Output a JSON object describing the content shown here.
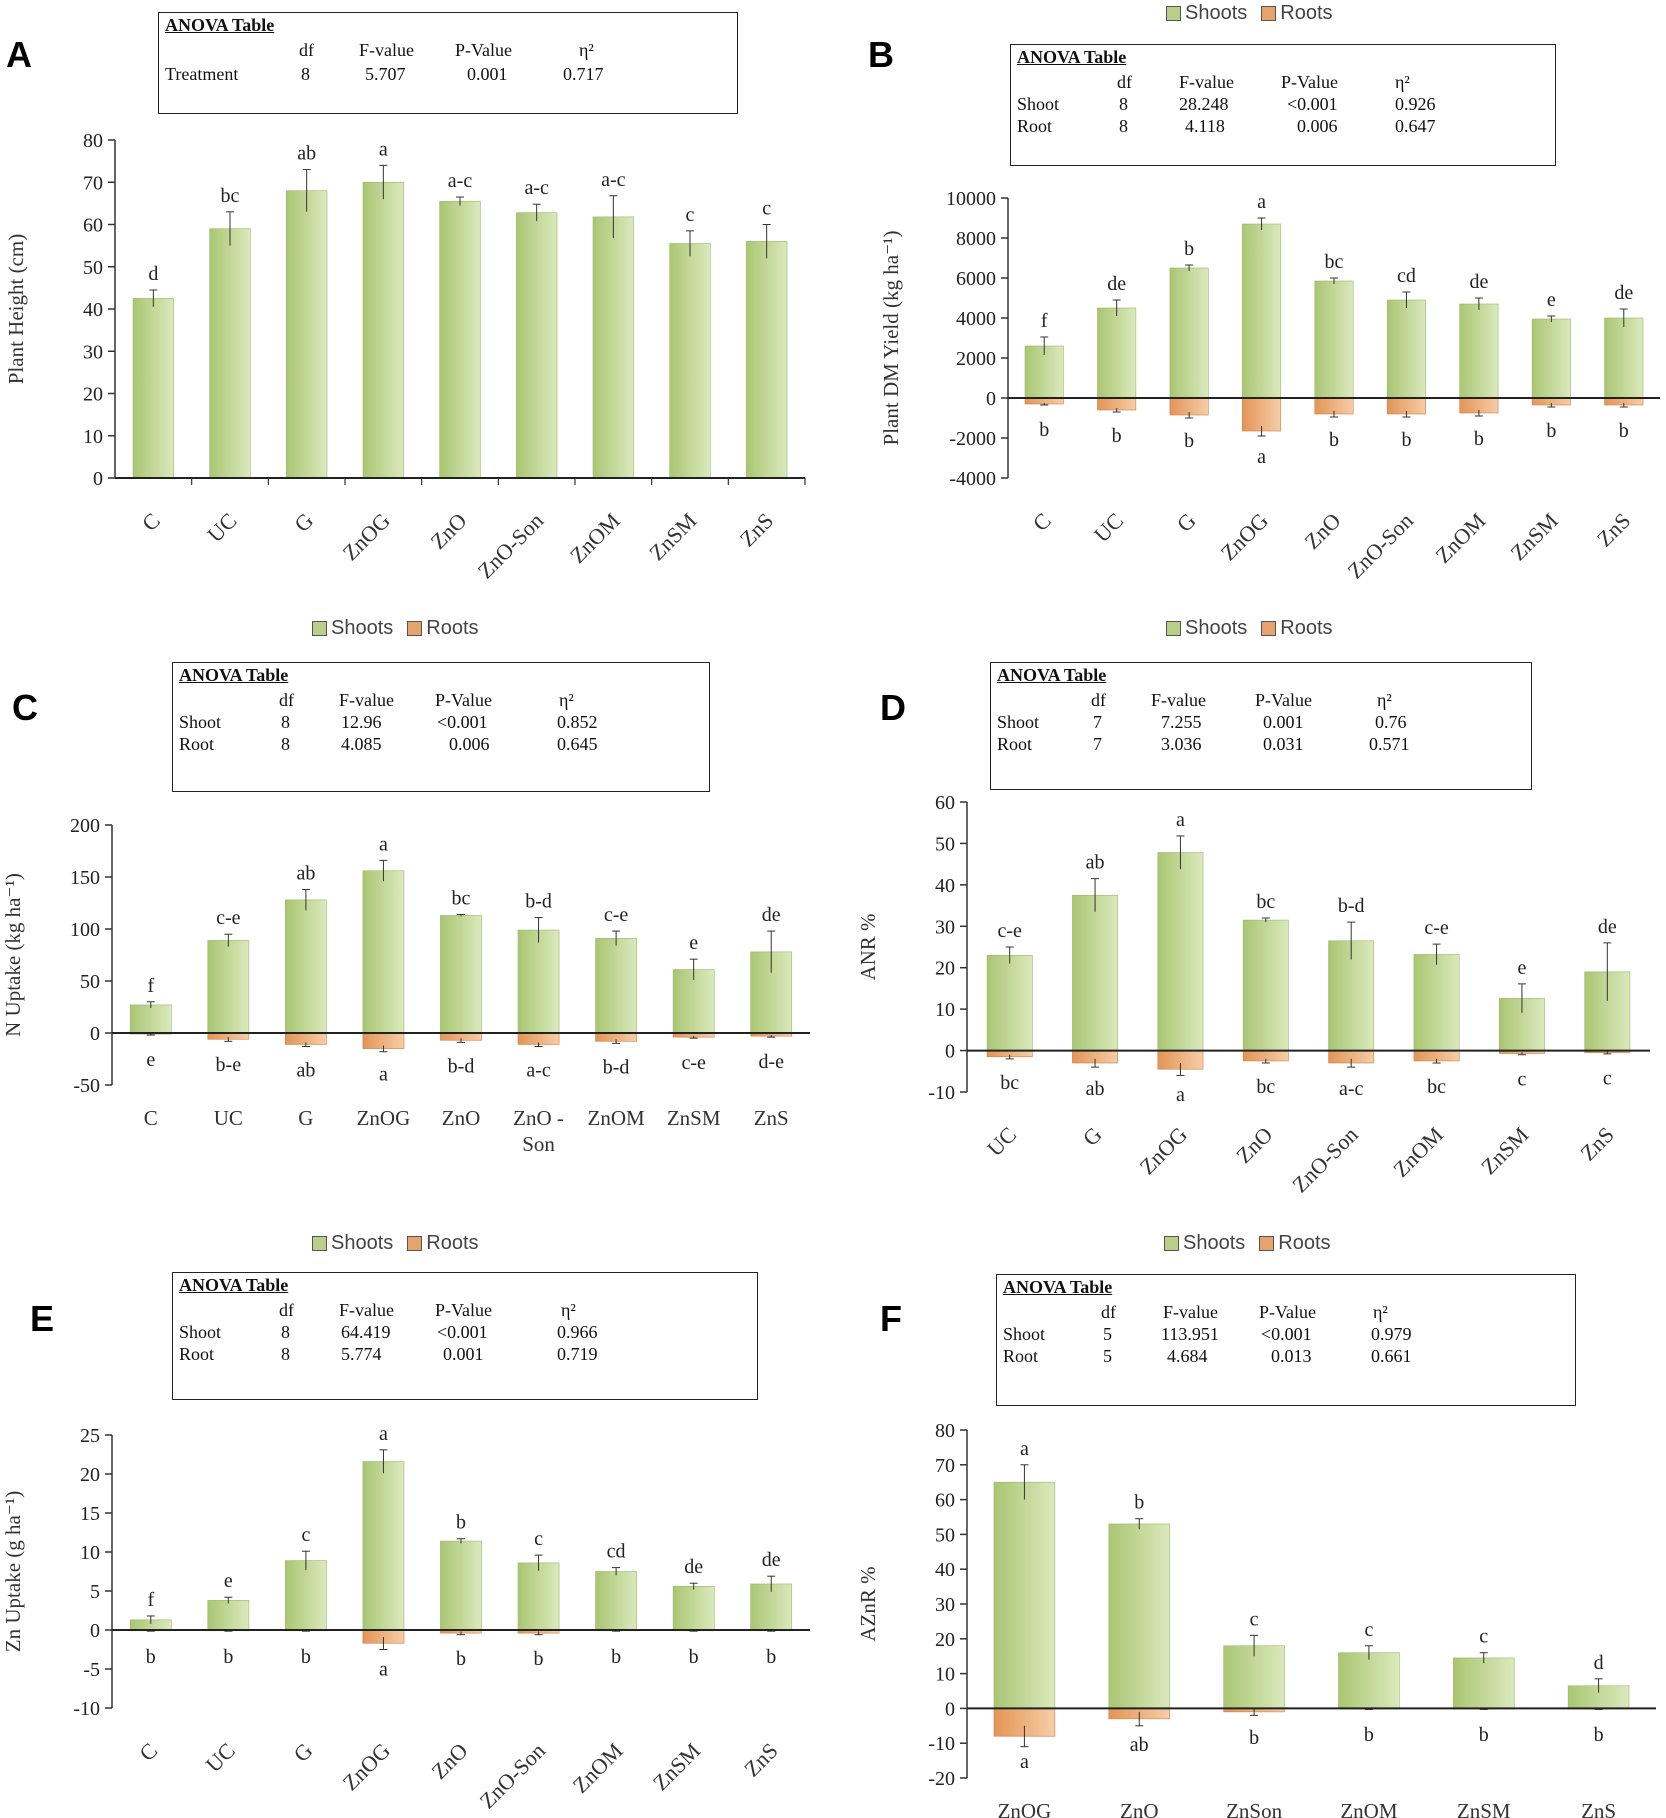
{
  "legend": {
    "shoots": "Shoots",
    "roots": "Roots"
  },
  "anova_header": {
    "title": "ANOVA Table",
    "df": "df",
    "f": "F-value",
    "p": "P-Value",
    "eta": "η²"
  },
  "colors": {
    "shoot": "#a9c672",
    "shoot_light": "#dbe9bd",
    "root": "#e39556",
    "root_light": "#f6cda6",
    "axis": "#222222"
  },
  "chart_data": [
    {
      "id": "A",
      "type": "bar",
      "letter": "A",
      "title": "",
      "ylabel": "Plant Height (cm)",
      "xlabel": "",
      "ylim": [
        0,
        80
      ],
      "yticks": [
        "0",
        "10",
        "20",
        "30",
        "40",
        "50",
        "60",
        "70",
        "80"
      ],
      "categories": [
        "C",
        "UC",
        "G",
        "ZnOG",
        "ZnO",
        "ZnO-Son",
        "ZnOM",
        "ZnSM",
        "ZnS"
      ],
      "rotate_labels": true,
      "show_legend": false,
      "series": [
        {
          "name": "Height",
          "values": [
            42.5,
            59,
            68,
            70,
            65.5,
            62.8,
            61.8,
            55.5,
            56
          ],
          "errors": [
            2,
            4,
            5,
            4,
            1,
            2,
            5,
            3,
            4
          ],
          "letters": [
            "d",
            "bc",
            "ab",
            "a",
            "a-c",
            "a-c",
            "a-c",
            "c",
            "c"
          ]
        }
      ],
      "anova": {
        "rows": [
          {
            "name": "Treatment",
            "df": "8",
            "f": "5.707",
            "p": "0.001",
            "eta": "0.717"
          }
        ]
      }
    },
    {
      "id": "B",
      "type": "bar",
      "letter": "B",
      "title": "",
      "ylabel": "Plant DM Yield (kg ha⁻¹)",
      "xlabel": "",
      "ylim": [
        -4000,
        10000
      ],
      "yticks": [
        "-4000",
        "-2000",
        "0",
        "2000",
        "4000",
        "6000",
        "8000",
        "10000"
      ],
      "categories": [
        "C",
        "UC",
        "G",
        "ZnOG",
        "ZnO",
        "ZnO-Son",
        "ZnOM",
        "ZnSM",
        "ZnS"
      ],
      "rotate_labels": true,
      "show_legend": true,
      "series": [
        {
          "name": "Shoots",
          "values": [
            2600,
            4500,
            6500,
            8700,
            5850,
            4900,
            4700,
            3950,
            4000
          ],
          "errors": [
            450,
            400,
            150,
            300,
            150,
            400,
            300,
            150,
            450
          ],
          "letters": [
            "f",
            "de",
            "b",
            "a",
            "bc",
            "cd",
            "de",
            "e",
            "de"
          ]
        },
        {
          "name": "Roots",
          "values": [
            -300,
            -600,
            -850,
            -1650,
            -800,
            -800,
            -750,
            -350,
            -350
          ],
          "errors": [
            50,
            100,
            150,
            250,
            150,
            150,
            150,
            100,
            100
          ],
          "letters": [
            "b",
            "b",
            "b",
            "a",
            "b",
            "b",
            "b",
            "b",
            "b"
          ]
        }
      ],
      "anova": {
        "rows": [
          {
            "name": "Shoot",
            "df": "8",
            "f": "28.248",
            "p": "<0.001",
            "eta": "0.926"
          },
          {
            "name": "Root",
            "df": "8",
            "f": "4.118",
            "p": "0.006",
            "eta": "0.647"
          }
        ]
      }
    },
    {
      "id": "C",
      "type": "bar",
      "letter": "C",
      "title": "",
      "ylabel": "N Uptake (kg ha⁻¹)",
      "xlabel": "",
      "ylim": [
        -50,
        200
      ],
      "yticks": [
        "-50",
        "0",
        "50",
        "100",
        "150",
        "200"
      ],
      "categories": [
        "C",
        "UC",
        "G",
        "ZnOG",
        "ZnO",
        "ZnO - Son",
        "ZnOM",
        "ZnSM",
        "ZnS"
      ],
      "rotate_labels": false,
      "show_legend": true,
      "series": [
        {
          "name": "Shoots",
          "values": [
            27,
            89,
            128,
            156,
            113,
            99,
            91,
            61,
            78
          ],
          "errors": [
            3,
            6,
            10,
            10,
            1,
            12,
            7,
            10,
            20
          ],
          "letters": [
            "f",
            "c-e",
            "ab",
            "a",
            "bc",
            "b-d",
            "c-e",
            "e",
            "de"
          ]
        },
        {
          "name": "Roots",
          "values": [
            -1,
            -6,
            -11,
            -15,
            -7,
            -11,
            -8,
            -4,
            -3
          ],
          "errors": [
            1,
            2,
            2,
            3,
            2,
            2,
            2,
            1,
            1
          ],
          "letters": [
            "e",
            "b-e",
            "ab",
            "a",
            "b-d",
            "a-c",
            "b-d",
            "c-e",
            "d-e"
          ]
        }
      ],
      "anova": {
        "rows": [
          {
            "name": "Shoot",
            "df": "8",
            "f": "12.96",
            "p": "<0.001",
            "eta": "0.852"
          },
          {
            "name": "Root",
            "df": "8",
            "f": "4.085",
            "p": "0.006",
            "eta": "0.645"
          }
        ]
      }
    },
    {
      "id": "D",
      "type": "bar",
      "letter": "D",
      "title": "",
      "ylabel": "ANR %",
      "xlabel": "",
      "ylim": [
        -10,
        60
      ],
      "yticks": [
        "-10",
        "0",
        "10",
        "20",
        "30",
        "40",
        "50",
        "60"
      ],
      "categories": [
        "UC",
        "G",
        "ZnOG",
        "ZnO",
        "ZnO-Son",
        "ZnOM",
        "ZnSM",
        "ZnS"
      ],
      "rotate_labels": true,
      "show_legend": true,
      "series": [
        {
          "name": "Shoots",
          "values": [
            23,
            37.5,
            47.8,
            31.5,
            26.5,
            23.2,
            12.6,
            19
          ],
          "errors": [
            2,
            4,
            4,
            0.5,
            4.5,
            2.5,
            3.5,
            7
          ],
          "letters": [
            "c-e",
            "ab",
            "a",
            "bc",
            "b-d",
            "c-e",
            "e",
            "de"
          ]
        },
        {
          "name": "Roots",
          "values": [
            -1.5,
            -3,
            -4.5,
            -2.5,
            -3,
            -2.5,
            -0.7,
            -0.5
          ],
          "errors": [
            0.5,
            1,
            1.5,
            0.5,
            1,
            0.5,
            0.3,
            0.3
          ],
          "letters": [
            "bc",
            "ab",
            "a",
            "bc",
            "a-c",
            "bc",
            "c",
            "c"
          ]
        }
      ],
      "anova": {
        "rows": [
          {
            "name": "Shoot",
            "df": "7",
            "f": "7.255",
            "p": "0.001",
            "eta": "0.76"
          },
          {
            "name": "Root",
            "df": "7",
            "f": "3.036",
            "p": "0.031",
            "eta": "0.571"
          }
        ]
      }
    },
    {
      "id": "E",
      "type": "bar",
      "letter": "E",
      "title": "",
      "ylabel": "Zn Uptake (g ha⁻¹)",
      "xlabel": "",
      "ylim": [
        -10,
        25
      ],
      "yticks": [
        "-10",
        "-5",
        "0",
        "5",
        "10",
        "15",
        "20",
        "25"
      ],
      "categories": [
        "C",
        "UC",
        "G",
        "ZnOG",
        "ZnO",
        "ZnO-Son",
        "ZnOM",
        "ZnSM",
        "ZnS"
      ],
      "rotate_labels": true,
      "show_legend": true,
      "series": [
        {
          "name": "Shoots",
          "values": [
            1.3,
            3.8,
            8.9,
            21.6,
            11.4,
            8.6,
            7.5,
            5.6,
            5.9
          ],
          "errors": [
            0.5,
            0.4,
            1.2,
            1.5,
            0.3,
            1,
            0.5,
            0.4,
            1
          ],
          "letters": [
            "f",
            "e",
            "c",
            "a",
            "b",
            "c",
            "cd",
            "de",
            "de"
          ]
        },
        {
          "name": "Roots",
          "values": [
            -0.1,
            -0.1,
            -0.1,
            -1.7,
            -0.4,
            -0.4,
            -0.1,
            -0.1,
            -0.1
          ],
          "errors": [
            0.05,
            0.05,
            0.05,
            0.8,
            0.2,
            0.2,
            0.05,
            0.05,
            0.05
          ],
          "letters": [
            "b",
            "b",
            "b",
            "a",
            "b",
            "b",
            "b",
            "b",
            "b"
          ]
        }
      ],
      "anova": {
        "rows": [
          {
            "name": "Shoot",
            "df": "8",
            "f": "64.419",
            "p": "<0.001",
            "eta": "0.966"
          },
          {
            "name": "Root",
            "df": "8",
            "f": "5.774",
            "p": "0.001",
            "eta": "0.719"
          }
        ]
      }
    },
    {
      "id": "F",
      "type": "bar",
      "letter": "F",
      "title": "",
      "ylabel": "AZnR %",
      "xlabel": "",
      "ylim": [
        -20,
        80
      ],
      "yticks": [
        "-20",
        "-10",
        "0",
        "10",
        "20",
        "30",
        "40",
        "50",
        "60",
        "70",
        "80"
      ],
      "categories": [
        "ZnOG",
        "ZnO",
        "ZnSon",
        "ZnOM",
        "ZnSM",
        "ZnS"
      ],
      "rotate_labels": false,
      "show_legend": true,
      "series": [
        {
          "name": "Shoots",
          "values": [
            65,
            53,
            18,
            16,
            14.5,
            6.5
          ],
          "errors": [
            5,
            1.5,
            3,
            2,
            1.5,
            2
          ],
          "letters": [
            "a",
            "b",
            "c",
            "c",
            "c",
            "d"
          ]
        },
        {
          "name": "Roots",
          "values": [
            -8,
            -3,
            -1,
            -0.2,
            -0.2,
            -0.2
          ],
          "errors": [
            3,
            2,
            1,
            0.1,
            0.1,
            0.1
          ],
          "letters": [
            "a",
            "ab",
            "b",
            "b",
            "b",
            "b"
          ]
        }
      ],
      "anova": {
        "rows": [
          {
            "name": "Shoot",
            "df": "5",
            "f": "113.951",
            "p": "<0.001",
            "eta": "0.979"
          },
          {
            "name": "Root",
            "df": "5",
            "f": "4.684",
            "p": "0.013",
            "eta": "0.661"
          }
        ]
      }
    }
  ]
}
